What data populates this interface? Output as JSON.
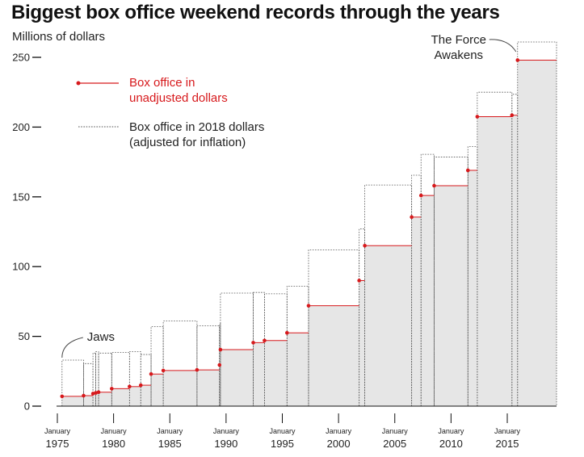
{
  "chart_data": {
    "type": "area",
    "title": "Biggest box office weekend records through the years",
    "ylabel": "Millions of dollars",
    "xlabel": "",
    "ylim": [
      0,
      265
    ],
    "xlim": [
      "1975-01",
      "2018-08"
    ],
    "yticks": [
      0,
      50,
      100,
      150,
      200,
      250
    ],
    "xticks": [
      {
        "month": "January",
        "year": "1975"
      },
      {
        "month": "January",
        "year": "1980"
      },
      {
        "month": "January",
        "year": "1985"
      },
      {
        "month": "January",
        "year": "1990"
      },
      {
        "month": "January",
        "year": "1995"
      },
      {
        "month": "January",
        "year": "2000"
      },
      {
        "month": "January",
        "year": "2005"
      },
      {
        "month": "January",
        "year": "2010"
      },
      {
        "month": "January",
        "year": "2015"
      }
    ],
    "series": [
      {
        "name": "Box office in unadjusted dollars",
        "style": "red step line with dots, grey fill",
        "points": [
          {
            "date": "1975-06",
            "value": 7
          },
          {
            "date": "1977-05",
            "value": 7.5
          },
          {
            "date": "1978-03",
            "value": 9
          },
          {
            "date": "1978-06",
            "value": 9.5
          },
          {
            "date": "1978-09",
            "value": 10
          },
          {
            "date": "1979-11",
            "value": 12.5
          },
          {
            "date": "1981-06",
            "value": 14
          },
          {
            "date": "1982-06",
            "value": 15
          },
          {
            "date": "1983-05",
            "value": 23
          },
          {
            "date": "1984-06",
            "value": 25.5
          },
          {
            "date": "1987-06",
            "value": 26
          },
          {
            "date": "1989-06",
            "value": 29.5
          },
          {
            "date": "1989-07",
            "value": 40.5
          },
          {
            "date": "1992-06",
            "value": 45.5
          },
          {
            "date": "1993-06",
            "value": 47
          },
          {
            "date": "1995-06",
            "value": 52.5
          },
          {
            "date": "1997-05",
            "value": 72
          },
          {
            "date": "2001-11",
            "value": 90
          },
          {
            "date": "2002-05",
            "value": 115
          },
          {
            "date": "2006-07",
            "value": 135.5
          },
          {
            "date": "2007-05",
            "value": 151
          },
          {
            "date": "2008-07",
            "value": 158
          },
          {
            "date": "2011-07",
            "value": 169
          },
          {
            "date": "2012-05",
            "value": 207.5
          },
          {
            "date": "2015-06",
            "value": 208.5
          },
          {
            "date": "2015-12",
            "value": 248
          }
        ]
      },
      {
        "name": "Box office in 2018 dollars (adjusted for inflation)",
        "style": "grey dotted step outline",
        "points": [
          {
            "date": "1975-06",
            "value": 33
          },
          {
            "date": "1977-05",
            "value": 30.5
          },
          {
            "date": "1978-03",
            "value": 38
          },
          {
            "date": "1978-06",
            "value": 39
          },
          {
            "date": "1978-09",
            "value": 38
          },
          {
            "date": "1979-11",
            "value": 38.5
          },
          {
            "date": "1981-06",
            "value": 39
          },
          {
            "date": "1982-06",
            "value": 37
          },
          {
            "date": "1983-05",
            "value": 57
          },
          {
            "date": "1984-06",
            "value": 61
          },
          {
            "date": "1987-06",
            "value": 57.5
          },
          {
            "date": "1989-06",
            "value": 59
          },
          {
            "date": "1989-07",
            "value": 81
          },
          {
            "date": "1992-06",
            "value": 81.5
          },
          {
            "date": "1993-06",
            "value": 80.5
          },
          {
            "date": "1995-06",
            "value": 86
          },
          {
            "date": "1997-05",
            "value": 112
          },
          {
            "date": "2001-11",
            "value": 127
          },
          {
            "date": "2002-05",
            "value": 158.5
          },
          {
            "date": "2006-07",
            "value": 165.5
          },
          {
            "date": "2007-05",
            "value": 180.5
          },
          {
            "date": "2008-07",
            "value": 178.5
          },
          {
            "date": "2011-07",
            "value": 186
          },
          {
            "date": "2012-05",
            "value": 225
          },
          {
            "date": "2015-06",
            "value": 223.5
          },
          {
            "date": "2015-12",
            "value": 261
          }
        ]
      }
    ],
    "legend": {
      "placement": "top-left",
      "items": [
        {
          "lines": [
            "Box office in",
            "unadjusted dollars"
          ],
          "color": "#d7191c",
          "style": "solid-dot"
        },
        {
          "lines": [
            "Box office in 2018 dollars",
            "(adjusted for inflation)"
          ],
          "color": "#555555",
          "style": "dotted"
        }
      ]
    },
    "annotations": [
      {
        "text": [
          "Jaws"
        ],
        "date": "1975-06",
        "value": 33
      },
      {
        "text": [
          "The Force",
          "Awakens"
        ],
        "date": "2015-12",
        "value": 261
      }
    ],
    "colors": {
      "unadjusted": "#d7191c",
      "fill": "#e6e6e6",
      "adjusted": "#555555",
      "axis": "#111111"
    },
    "grid": false
  }
}
